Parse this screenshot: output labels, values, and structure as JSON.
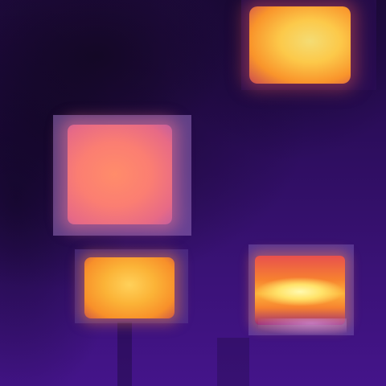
{
  "image": {
    "kind": "thermal-heatmap-photo",
    "palette": "inferno",
    "colors": {
      "background": "#2a0a55",
      "dark": "#140826",
      "hot_yellow": "#f4dc74",
      "hot_orange": "#f9942b",
      "hot_pink": "#fb7e72"
    },
    "regions": [
      {
        "id": "hot-region-top-right",
        "color": "yellow-orange",
        "highlighted": true
      },
      {
        "id": "hot-region-middle-left",
        "color": "pink-orange",
        "highlighted": true
      },
      {
        "id": "hot-region-bottom-left",
        "color": "orange",
        "highlighted": true
      },
      {
        "id": "hot-region-bottom-right",
        "color": "yellow-red",
        "highlighted": true
      }
    ]
  }
}
